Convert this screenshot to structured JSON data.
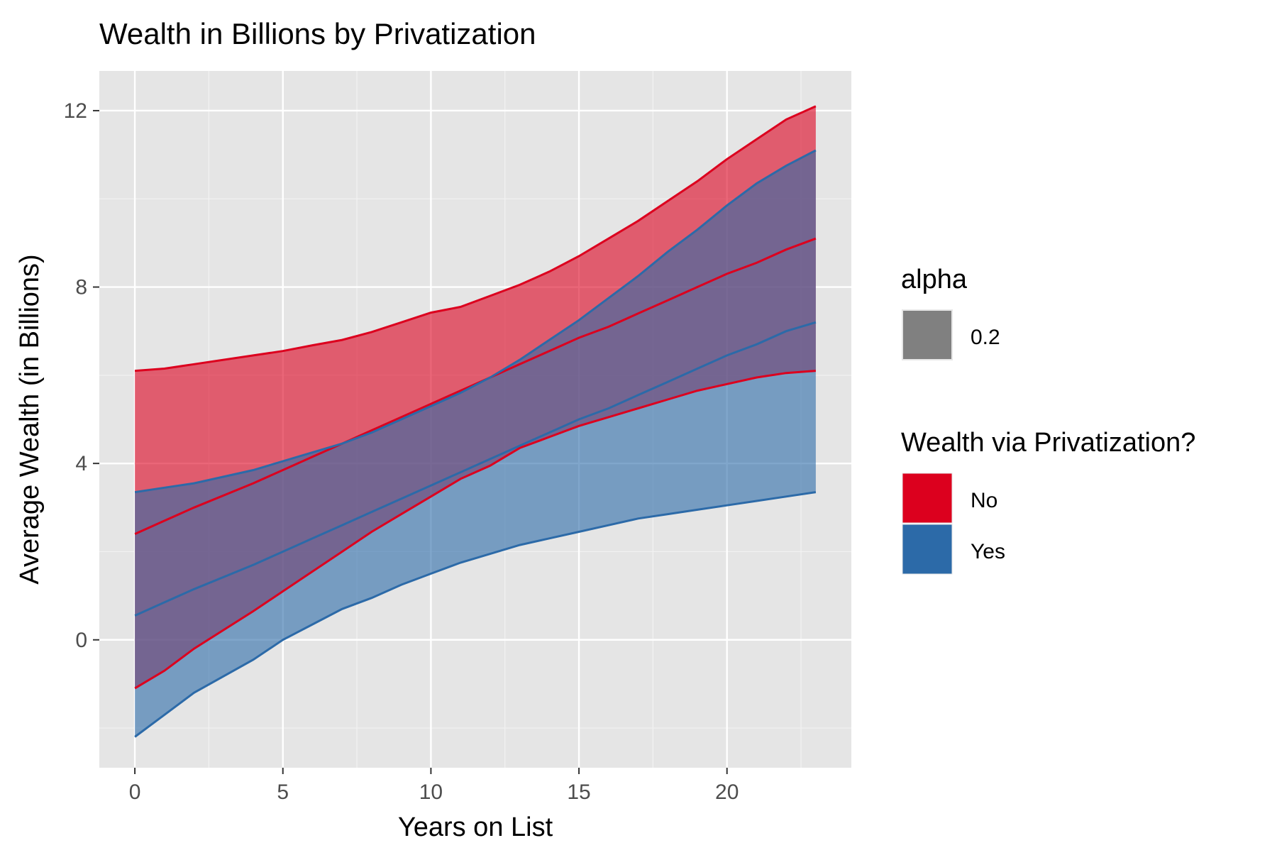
{
  "chart_data": {
    "type": "area",
    "title": "Wealth in Billions by Privatization",
    "xlabel": "Years on List",
    "ylabel": "Average Wealth (in Billions)",
    "xlim": [
      -1.2,
      24.2
    ],
    "ylim": [
      -2.9,
      12.9
    ],
    "x_ticks": [
      0,
      5,
      10,
      15,
      20
    ],
    "x_minor_ticks": [
      2.5,
      7.5,
      12.5,
      17.5,
      22.5
    ],
    "y_ticks": [
      0,
      4,
      8,
      12
    ],
    "y_minor_ticks": [
      -2,
      2,
      6,
      10
    ],
    "grid": true,
    "legend_position": "right",
    "legend_alpha": {
      "title": "alpha",
      "entries": [
        {
          "label": "0.2",
          "color": "#808080"
        }
      ]
    },
    "legend_fill": {
      "title": "Wealth via Privatization?",
      "entries": [
        {
          "label": "No",
          "color": "#DC001E"
        },
        {
          "label": "Yes",
          "color": "#2C6AA8"
        }
      ]
    },
    "series": [
      {
        "name": "No",
        "color": "#DC001E",
        "fill": "#E0626F",
        "x": [
          0,
          1,
          2,
          4,
          5,
          6,
          7,
          8,
          9,
          10,
          11,
          12,
          13,
          14,
          15,
          16,
          17,
          18,
          19,
          20,
          21,
          22,
          23
        ],
        "upper": [
          6.1,
          6.15,
          6.25,
          6.45,
          6.55,
          6.68,
          6.8,
          6.98,
          7.2,
          7.42,
          7.55,
          7.8,
          8.05,
          8.35,
          8.7,
          9.1,
          9.5,
          9.95,
          10.4,
          10.9,
          11.35,
          11.8,
          12.1
        ],
        "fit": [
          2.4,
          2.7,
          3.0,
          3.55,
          3.85,
          4.15,
          4.45,
          4.75,
          5.05,
          5.35,
          5.65,
          5.95,
          6.25,
          6.55,
          6.85,
          7.1,
          7.4,
          7.7,
          8.0,
          8.3,
          8.55,
          8.85,
          9.1
        ],
        "lower": [
          -1.1,
          -0.7,
          -0.2,
          0.65,
          1.1,
          1.55,
          2.0,
          2.45,
          2.85,
          3.25,
          3.65,
          3.95,
          4.35,
          4.6,
          4.85,
          5.05,
          5.25,
          5.45,
          5.65,
          5.8,
          5.95,
          6.05,
          6.1
        ]
      },
      {
        "name": "Yes",
        "color": "#2C6AA8",
        "fill": "#7FA4C7",
        "x": [
          0,
          1,
          2,
          4,
          5,
          6,
          7,
          8,
          9,
          10,
          11,
          12,
          13,
          14,
          15,
          16,
          17,
          18,
          19,
          20,
          21,
          22,
          23
        ],
        "upper": [
          3.35,
          3.45,
          3.55,
          3.85,
          4.05,
          4.25,
          4.45,
          4.7,
          5.0,
          5.3,
          5.6,
          5.95,
          6.35,
          6.8,
          7.25,
          7.75,
          8.25,
          8.8,
          9.3,
          9.85,
          10.35,
          10.75,
          11.1
        ],
        "fit": [
          0.55,
          0.85,
          1.15,
          1.7,
          2.0,
          2.3,
          2.6,
          2.9,
          3.2,
          3.5,
          3.8,
          4.1,
          4.4,
          4.7,
          5.0,
          5.25,
          5.55,
          5.85,
          6.15,
          6.45,
          6.7,
          7.0,
          7.2
        ],
        "lower": [
          -2.2,
          -1.7,
          -1.2,
          -0.45,
          0.0,
          0.35,
          0.7,
          0.95,
          1.25,
          1.5,
          1.75,
          1.95,
          2.15,
          2.3,
          2.45,
          2.6,
          2.75,
          2.85,
          2.95,
          3.05,
          3.15,
          3.25,
          3.35
        ]
      }
    ]
  }
}
